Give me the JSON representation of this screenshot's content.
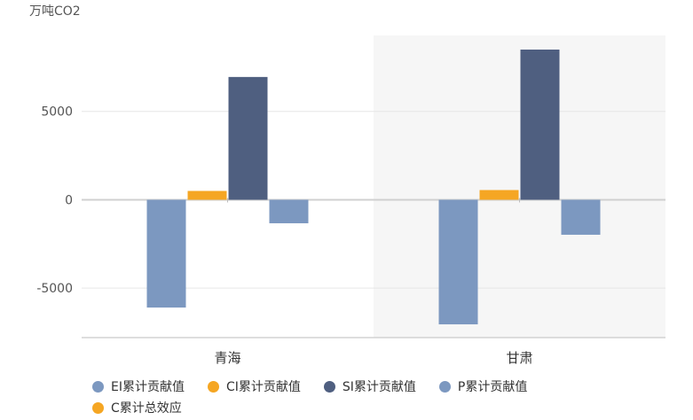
{
  "chart_data": {
    "type": "bar",
    "unit": "万吨CO2",
    "categories": [
      "青海",
      "甘肃"
    ],
    "highlighted_category": "甘肃",
    "ylim": [
      -7800,
      9300
    ],
    "yticks": [
      5000,
      0,
      -5000
    ],
    "ytick_labels": [
      "5000",
      "0",
      "-5000"
    ],
    "grid": true,
    "legend_position": "bottom",
    "series": [
      {
        "name": "EI累计贡献值",
        "values": [
          -6100,
          -7050
        ],
        "color": "#7c98c0",
        "show_bar": true
      },
      {
        "name": "CI累计贡献值",
        "values": [
          500,
          550
        ],
        "color": "#f5a623",
        "show_bar": true
      },
      {
        "name": "SI累计贡献值",
        "values": [
          6950,
          8500
        ],
        "color": "#4f5f80",
        "show_bar": true
      },
      {
        "name": "P累计贡献值",
        "values": [
          -1330,
          -1980
        ],
        "color": "#7c98c0",
        "show_bar": true
      },
      {
        "name": "C累计总效应",
        "values": [
          null,
          null
        ],
        "color": "#f5a623",
        "show_bar": false
      }
    ]
  },
  "legend": {
    "rows": [
      [
        {
          "label": "EI累计贡献值",
          "color": "#7c98c0"
        },
        {
          "label": "CI累计贡献值",
          "color": "#f5a623"
        },
        {
          "label": "SI累计贡献值",
          "color": "#4f5f80"
        },
        {
          "label": "P累计贡献值",
          "color": "#7c98c0"
        }
      ],
      [
        {
          "label": "C累计总效应",
          "color": "#f5a623"
        }
      ]
    ]
  }
}
